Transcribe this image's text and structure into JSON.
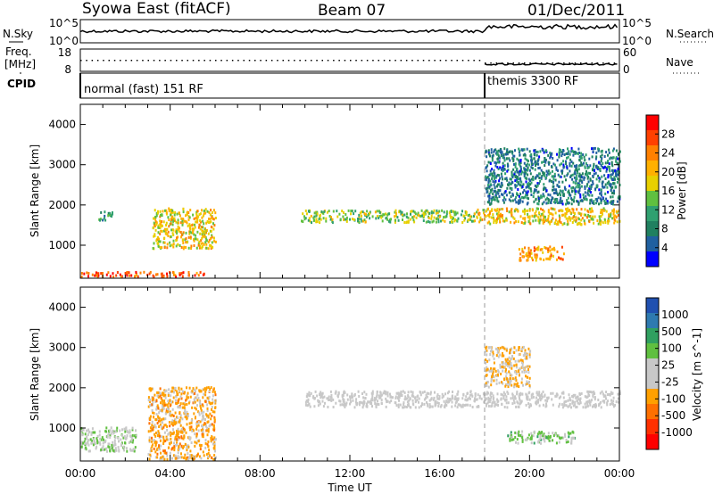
{
  "header": {
    "station": "Syowa East (fitACF)",
    "beam": "Beam 07",
    "date": "01/Dec/2011"
  },
  "strips": {
    "noise": {
      "left_label": "N.Sky",
      "right_label": "N.Search",
      "left_ticks": [
        "10^5",
        "10^0"
      ],
      "right_ticks": [
        "10^5",
        "10^0"
      ]
    },
    "freq": {
      "left_label_1": "Freq.",
      "left_label_2": "[MHz]",
      "right_label": "Nave",
      "left_ticks": [
        "18",
        "8"
      ],
      "right_ticks": [
        "60",
        "0"
      ]
    },
    "cpid": {
      "label": "CPID",
      "modes": [
        {
          "name": "normal (fast) 151 RF",
          "start_hour": 0
        },
        {
          "name": "themis 3300 RF",
          "start_hour": 18
        }
      ]
    }
  },
  "panels": {
    "power": {
      "ylabel": "Slant Range [km]",
      "cbar_label": "Power [dB]",
      "cbar_ticks": [
        "28",
        "24",
        "20",
        "16",
        "12",
        "8",
        "4"
      ],
      "cbar_colors": [
        "#ff0000",
        "#ff4000",
        "#ff8000",
        "#ffb000",
        "#e8d000",
        "#60c040",
        "#30a070",
        "#208060",
        "#2060a0",
        "#0000ff"
      ]
    },
    "velocity": {
      "ylabel": "Slant Range [km]",
      "cbar_label": "Velocity [m s^-1]",
      "cbar_ticks": [
        "1000",
        "500",
        "100",
        "25",
        "-25",
        "-100",
        "-500",
        "-1000"
      ],
      "cbar_colors": [
        "#2050b0",
        "#2e7ab0",
        "#30a060",
        "#60c040",
        "#c8c8c8",
        "#c8c8c8",
        "#ffa000",
        "#ff7000",
        "#ff3000",
        "#ff0000"
      ]
    }
  },
  "xaxis": {
    "label": "Time UT",
    "ticks": [
      "00:00",
      "04:00",
      "08:00",
      "12:00",
      "16:00",
      "20:00",
      "00:00"
    ]
  },
  "chart_data": {
    "type": "heatmap",
    "title": "Syowa East (fitACF)",
    "subtitle": "Beam 07",
    "xlabel": "Time UT",
    "ylabel": "Slant Range [km]",
    "x_range_hours": [
      0,
      24
    ],
    "y_range_km": [
      180,
      4500
    ],
    "y_ticks": [
      1000,
      2000,
      3000,
      4000
    ],
    "mode_change_hour": 18,
    "power_scale_db": [
      0,
      30
    ],
    "velocity_scale_ms": [
      -1000,
      1000
    ],
    "power_echo_regions": [
      {
        "hours": [
          0.8,
          1.4
        ],
        "km": [
          1600,
          1850
        ],
        "db": 8
      },
      {
        "hours": [
          3.2,
          6.0
        ],
        "km": [
          900,
          1900
        ],
        "db": 18
      },
      {
        "hours": [
          0.0,
          5.5
        ],
        "km": [
          200,
          320
        ],
        "db": 26
      },
      {
        "hours": [
          9.8,
          17.5
        ],
        "km": [
          1550,
          1850
        ],
        "db": 14
      },
      {
        "hours": [
          17.5,
          24.0
        ],
        "km": [
          1500,
          1900
        ],
        "db": 18
      },
      {
        "hours": [
          18.0,
          24.0
        ],
        "km": [
          2000,
          3400
        ],
        "db": 6
      },
      {
        "hours": [
          19.5,
          21.5
        ],
        "km": [
          600,
          950
        ],
        "db": 22
      }
    ],
    "velocity_echo_regions": [
      {
        "hours": [
          3.0,
          6.0
        ],
        "km": [
          200,
          2000
        ],
        "ms": -300
      },
      {
        "hours": [
          0.0,
          2.5
        ],
        "km": [
          400,
          1000
        ],
        "ms": 150
      },
      {
        "hours": [
          10.0,
          24.0
        ],
        "km": [
          1500,
          1900
        ],
        "ms": 0
      },
      {
        "hours": [
          19.0,
          22.0
        ],
        "km": [
          600,
          900
        ],
        "ms": 300
      },
      {
        "hours": [
          18.0,
          20.0
        ],
        "km": [
          2000,
          3000
        ],
        "ms": -200
      }
    ]
  }
}
